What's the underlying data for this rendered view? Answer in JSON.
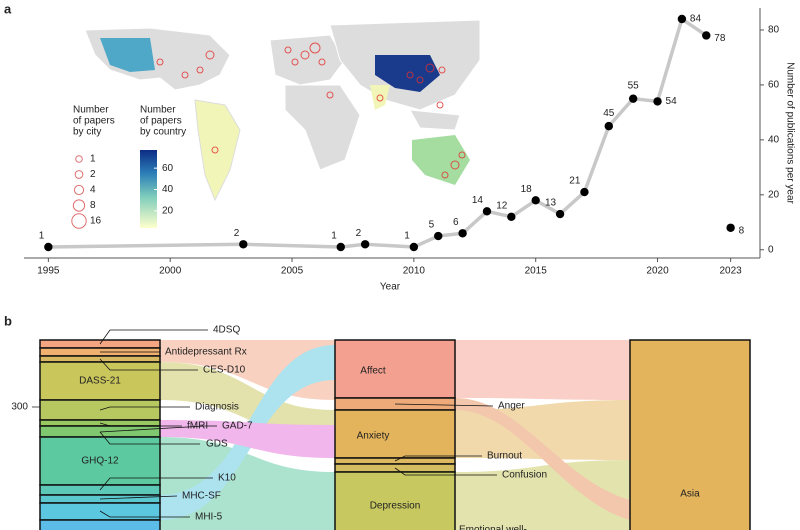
{
  "panel_a": {
    "letter": "a",
    "chart_data": {
      "type": "line",
      "x_label": "Year",
      "y_label": "Number of publications per year",
      "x": [
        1995,
        2003,
        2007,
        2008,
        2010,
        2011,
        2012,
        2013,
        2014,
        2015,
        2016,
        2017,
        2018,
        2019,
        2020,
        2021,
        2022,
        2023
      ],
      "series": [
        {
          "color": "#c8c8c8",
          "values": [
            1,
            2,
            1,
            2,
            1,
            5,
            6,
            14,
            12,
            18,
            13,
            21,
            45,
            55,
            54,
            84,
            78,
            null
          ]
        },
        {
          "color": "#c8c8c8",
          "values": [
            null,
            null,
            null,
            null,
            null,
            null,
            null,
            null,
            null,
            null,
            null,
            null,
            null,
            null,
            null,
            null,
            null,
            8
          ]
        }
      ],
      "marker_color": "#000000",
      "xlim": [
        1994,
        2024
      ],
      "xticks": [
        1995,
        2000,
        2005,
        2010,
        2015,
        2020,
        2023
      ],
      "ylim": [
        -3,
        88
      ],
      "yticks": [
        0,
        20,
        40,
        60,
        80
      ]
    },
    "map_legend": {
      "city_title": [
        "Number",
        "of papers",
        "by city"
      ],
      "city_sizes": [
        1,
        2,
        4,
        8,
        16
      ],
      "country_title": [
        "Number",
        "of papers",
        "by country"
      ],
      "colorbar_lim": [
        4,
        77
      ],
      "colorbar_ticks": [
        20,
        40,
        60
      ]
    }
  },
  "panel_b": {
    "letter": "b",
    "tick": 300,
    "left_labels": [
      "4DSQ",
      "Antidepressant Rx",
      "CES-D10",
      "DASS-21",
      "Diagnosis",
      "fMRI",
      "GAD-7",
      "GDS",
      "GHQ-12",
      "K10",
      "MHC-SF",
      "MHI-5"
    ],
    "middle_labels": [
      "Affect",
      "Anger",
      "Anxiety",
      "Burnout",
      "Confusion",
      "Depression",
      "Emotional well-"
    ],
    "right_labels": [
      "Asia"
    ]
  }
}
